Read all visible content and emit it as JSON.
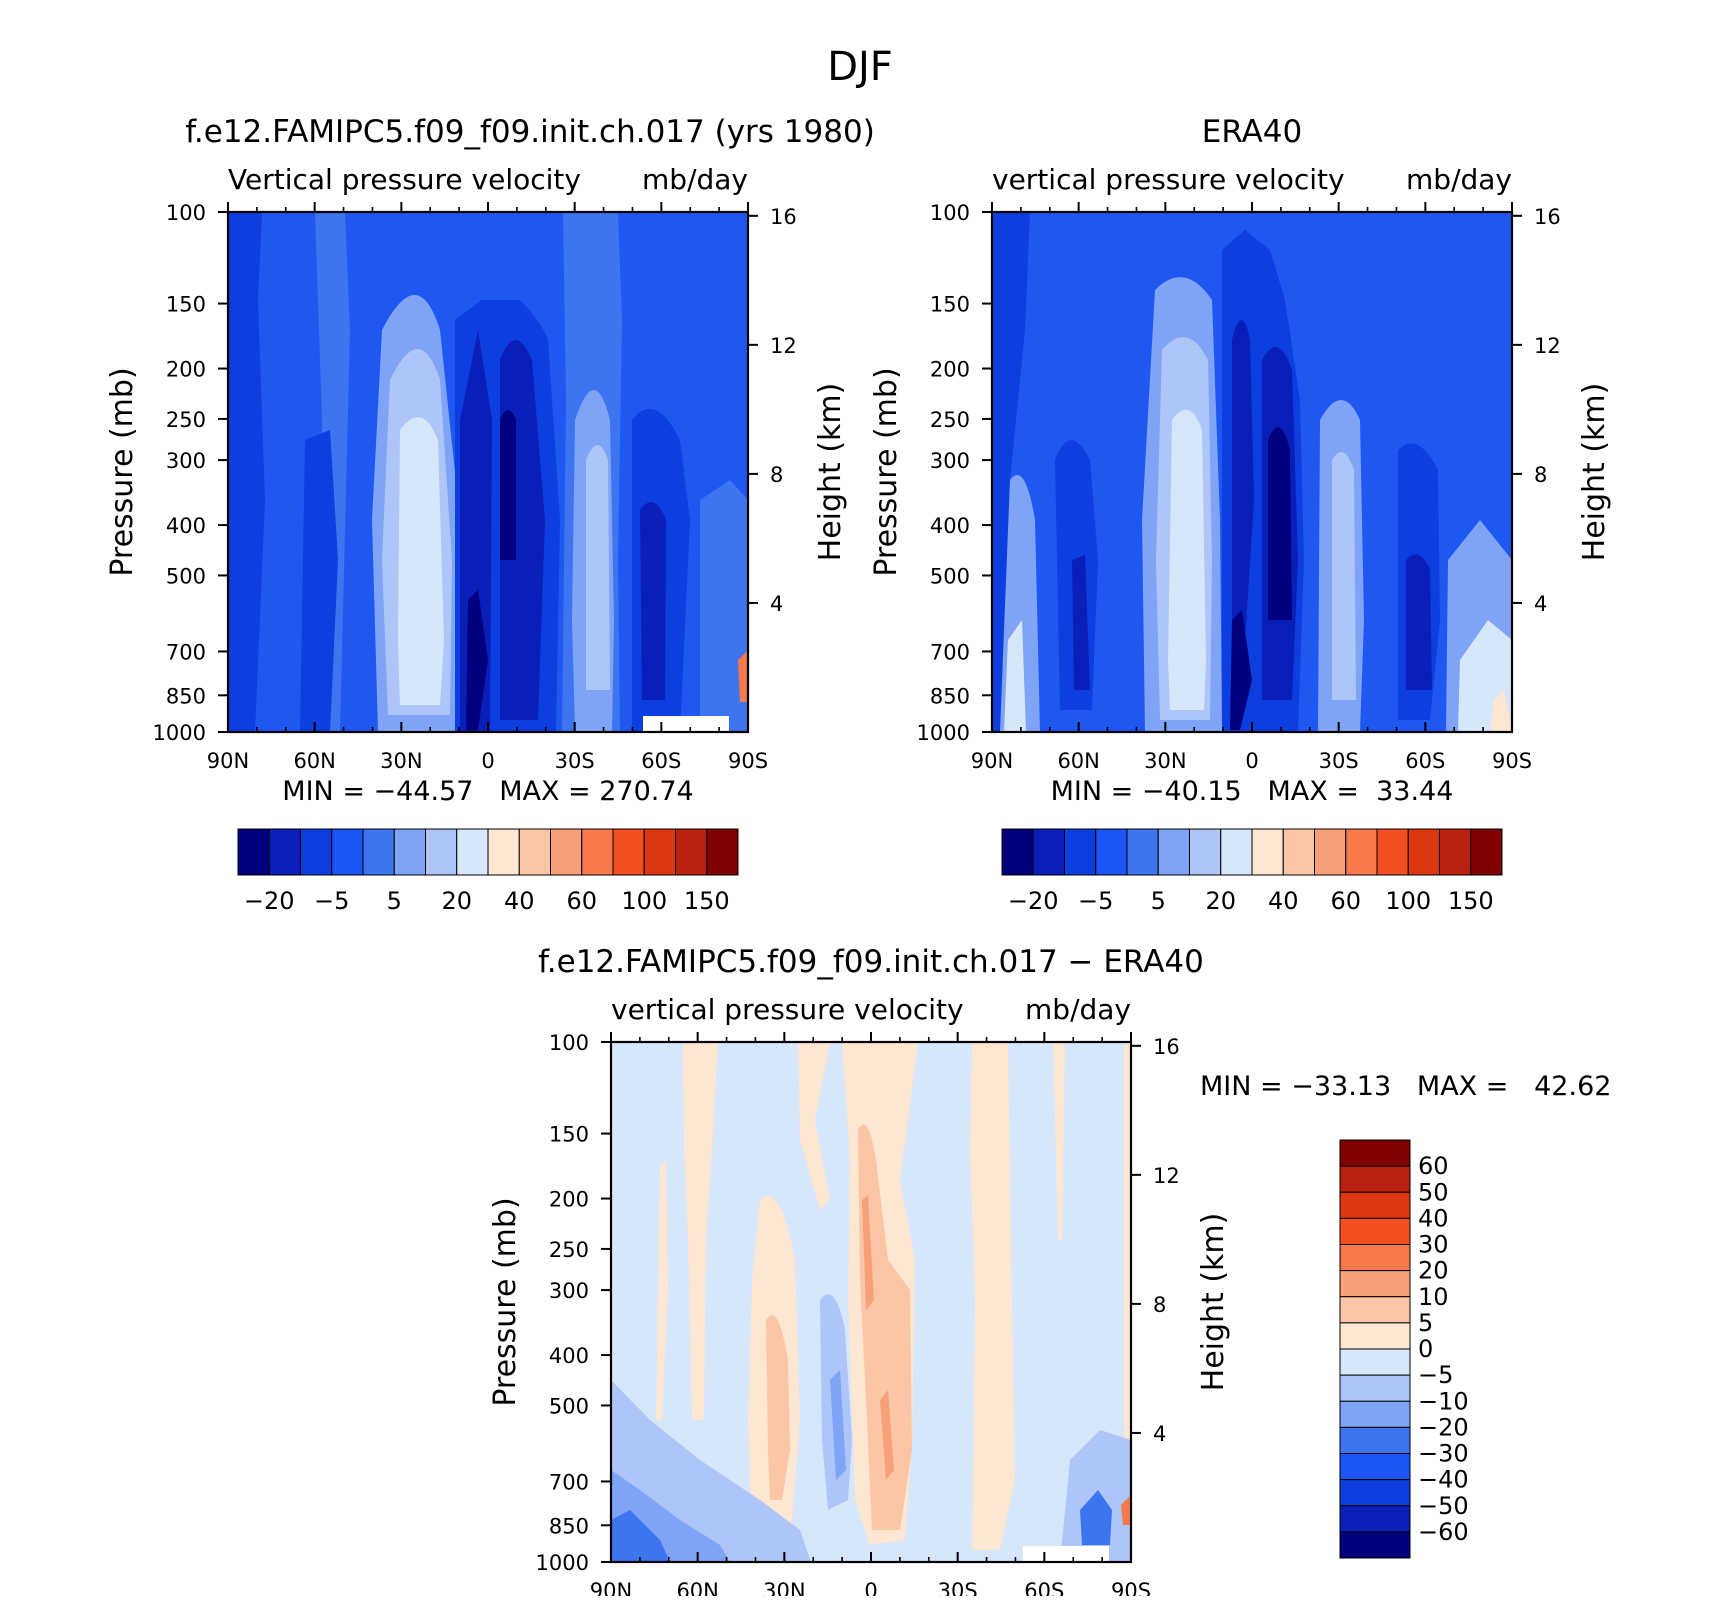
{
  "figure": {
    "title": "DJF"
  },
  "chart_data": [
    {
      "type": "heatmap",
      "id": "model",
      "title": "f.e12.FAMIPC5.f09_f09.init.ch.017 (yrs 1980)",
      "subtitle_left": "Vertical pressure velocity",
      "subtitle_right": "mb/day",
      "ylabel": "Pressure (mb)",
      "y2label": "Height (km)",
      "x_ticks": [
        "90N",
        "60N",
        "30N",
        "0",
        "30S",
        "60S",
        "90S"
      ],
      "y_ticks": [
        "100",
        "150",
        "200",
        "250",
        "300",
        "400",
        "500",
        "700",
        "850",
        "1000"
      ],
      "y2_ticks": [
        "16",
        "12",
        "8",
        "4"
      ],
      "stats_text": "MIN = −44.57   MAX = 270.74",
      "colorbar": {
        "orientation": "horizontal",
        "colors": [
          "#00007f",
          "#0a1fb8",
          "#0d3ee0",
          "#1b55f5",
          "#3d74f0",
          "#7fa3f5",
          "#aec6f7",
          "#d6e6fb",
          "#fde6d2",
          "#fbc6a6",
          "#f7a07a",
          "#f7784a",
          "#f24e1f",
          "#dc3712",
          "#b8200f",
          "#800000"
        ],
        "labels": [
          "−20",
          "−5",
          "5",
          "20",
          "40",
          "60",
          "100",
          "150"
        ]
      },
      "fields": [
        {
          "x": [
            0,
            18
          ],
          "value": "#1e58f0"
        },
        {
          "x": [
            18,
            27
          ],
          "value": "#0d3ee0"
        },
        {
          "x": [
            27,
            33
          ],
          "value": "#3d74f0"
        },
        {
          "x": [
            33,
            38
          ],
          "value": "#7fa3f5"
        },
        {
          "x": [
            35,
            37
          ],
          "value": "#d6e6fb"
        },
        {
          "x": [
            40,
            48
          ],
          "value": "#0d3ee0"
        },
        {
          "x": [
            42,
            46
          ],
          "value": "#00007f"
        },
        {
          "x": [
            48,
            56
          ],
          "value": "#3d74f0"
        },
        {
          "x": [
            51,
            54
          ],
          "value": "#aec6f7"
        },
        {
          "x": [
            58,
            66
          ],
          "value": "#0d3ee0"
        }
      ],
      "min": -44.57,
      "max": 270.74
    },
    {
      "type": "heatmap",
      "id": "obs",
      "title": "ERA40",
      "subtitle_left": "vertical pressure velocity",
      "subtitle_right": "mb/day",
      "ylabel": "Pressure (mb)",
      "y2label": "Height (km)",
      "x_ticks": [
        "90N",
        "60N",
        "30N",
        "0",
        "30S",
        "60S",
        "90S"
      ],
      "y_ticks": [
        "100",
        "150",
        "200",
        "250",
        "300",
        "400",
        "500",
        "700",
        "850",
        "1000"
      ],
      "y2_ticks": [
        "16",
        "12",
        "8",
        "4"
      ],
      "stats_text": "MIN = −40.15   MAX =  33.44",
      "colorbar": {
        "orientation": "horizontal",
        "colors": [
          "#00007f",
          "#0a1fb8",
          "#0d3ee0",
          "#1b55f5",
          "#3d74f0",
          "#7fa3f5",
          "#aec6f7",
          "#d6e6fb",
          "#fde6d2",
          "#fbc6a6",
          "#f7a07a",
          "#f7784a",
          "#f24e1f",
          "#dc3712",
          "#b8200f",
          "#800000"
        ],
        "labels": [
          "−20",
          "−5",
          "5",
          "20",
          "40",
          "60",
          "100",
          "150"
        ]
      },
      "min": -40.15,
      "max": 33.44
    },
    {
      "type": "heatmap",
      "id": "diff",
      "title": "f.e12.FAMIPC5.f09_f09.init.ch.017 − ERA40",
      "subtitle_left": "vertical pressure velocity",
      "subtitle_right": "mb/day",
      "ylabel": "Pressure (mb)",
      "y2label": "Height (km)",
      "x_ticks": [
        "90N",
        "60N",
        "30N",
        "0",
        "30S",
        "60S",
        "90S"
      ],
      "y_ticks": [
        "100",
        "150",
        "200",
        "250",
        "300",
        "400",
        "500",
        "700",
        "850",
        "1000"
      ],
      "y2_ticks": [
        "16",
        "12",
        "8",
        "4"
      ],
      "stats_text": "MIN = −33.13   MAX =   42.62",
      "colorbar": {
        "orientation": "vertical",
        "colors": [
          "#800000",
          "#b8200f",
          "#dc3712",
          "#f24e1f",
          "#f7784a",
          "#f7a07a",
          "#fbc6a6",
          "#fde6d2",
          "#d6e6fb",
          "#aec6f7",
          "#7fa3f5",
          "#3d74f0",
          "#1b55f5",
          "#0d3ee0",
          "#0a1fb8",
          "#00007f"
        ],
        "labels": [
          "60",
          "50",
          "40",
          "30",
          "20",
          "10",
          "5",
          "0",
          "−5",
          "−10",
          "−20",
          "−30",
          "−40",
          "−50",
          "−60"
        ]
      },
      "min": -33.13,
      "max": 42.62
    }
  ]
}
